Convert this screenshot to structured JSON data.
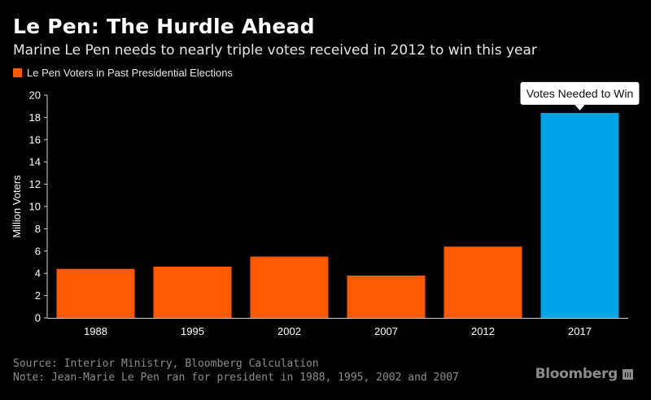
{
  "title": "Le Pen: The Hurdle Ahead",
  "subtitle": "Marine Le Pen needs to nearly triple votes received in 2012 to win this year",
  "legend_label": "Le Pen Voters in Past Presidential Elections",
  "footer": {
    "source": "Source: Interior Ministry, Bloomberg Calculation",
    "note": "Note: Jean-Marie Le Pen ran for president in 1988, 1995, 2002 and 2007"
  },
  "brand": "Bloomberg",
  "colors": {
    "past": "#ff5a00",
    "needed": "#00a3e6",
    "axis_text": "#ffffff",
    "grid": "#3a3a3a",
    "background": "#000000"
  },
  "chart_data": {
    "type": "bar",
    "categories": [
      "1988",
      "1995",
      "2002",
      "2007",
      "2012",
      "2017"
    ],
    "values": [
      4.4,
      4.6,
      5.5,
      3.8,
      6.4,
      18.4
    ],
    "bar_colors": [
      "#ff5a00",
      "#ff5a00",
      "#ff5a00",
      "#ff5a00",
      "#ff5a00",
      "#00a3e6"
    ],
    "ylabel": "Million Voters",
    "ylim": [
      0,
      20
    ],
    "yticks": [
      0,
      2,
      4,
      6,
      8,
      10,
      12,
      14,
      16,
      18,
      20
    ],
    "annotation": {
      "text": "Votes Needed to Win",
      "category": "2017"
    },
    "grid": false,
    "legend_position": "top-left"
  }
}
